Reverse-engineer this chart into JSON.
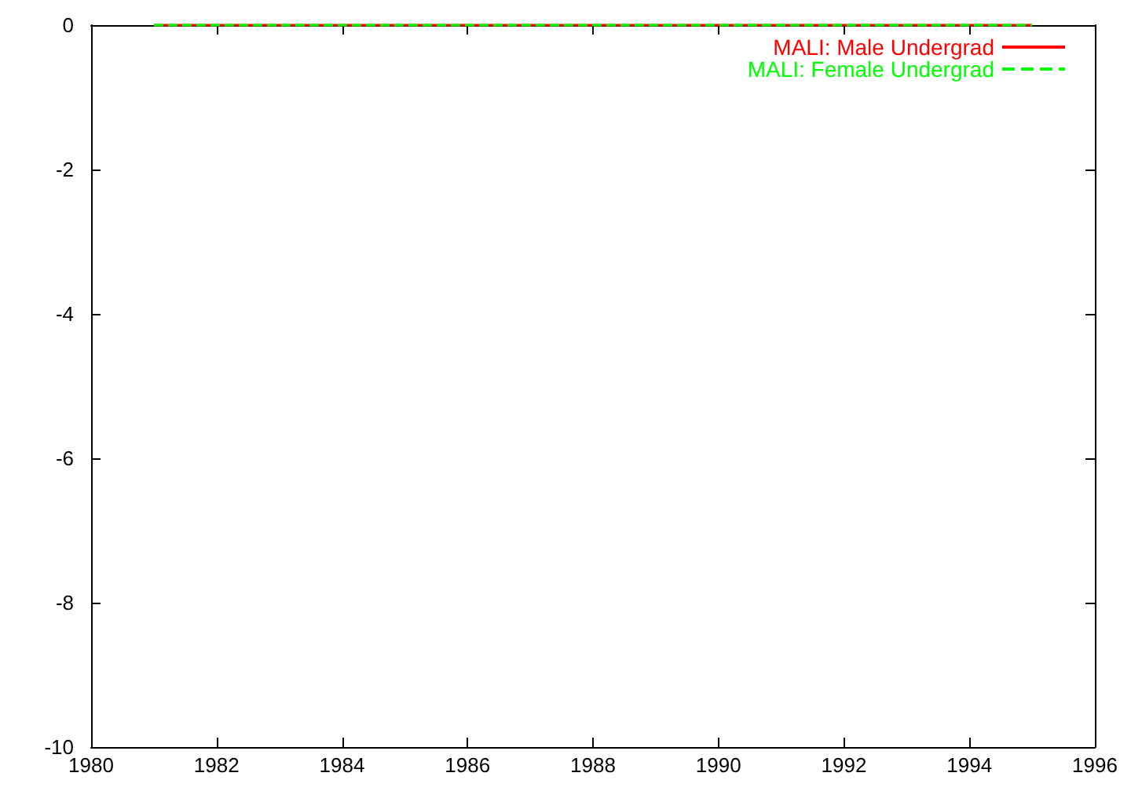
{
  "chart_data": {
    "type": "line",
    "x": [
      1981,
      1995
    ],
    "series": [
      {
        "name": "MALI: Male Undergrad",
        "color": "#ff0000",
        "line_style": "solid",
        "values": [
          0,
          0
        ]
      },
      {
        "name": "MALI: Female Undergrad",
        "color": "#00ff00",
        "line_style": "dashed",
        "values": [
          0,
          0
        ]
      }
    ],
    "xlim": [
      1980,
      1996
    ],
    "xticks": [
      1980,
      1982,
      1984,
      1986,
      1988,
      1990,
      1992,
      1994,
      1996
    ],
    "ylim": [
      -10,
      0
    ],
    "yticks": [
      -10,
      -8,
      -6,
      -4,
      -2,
      0
    ],
    "grid": false,
    "legend": "top right",
    "marker": "none"
  }
}
